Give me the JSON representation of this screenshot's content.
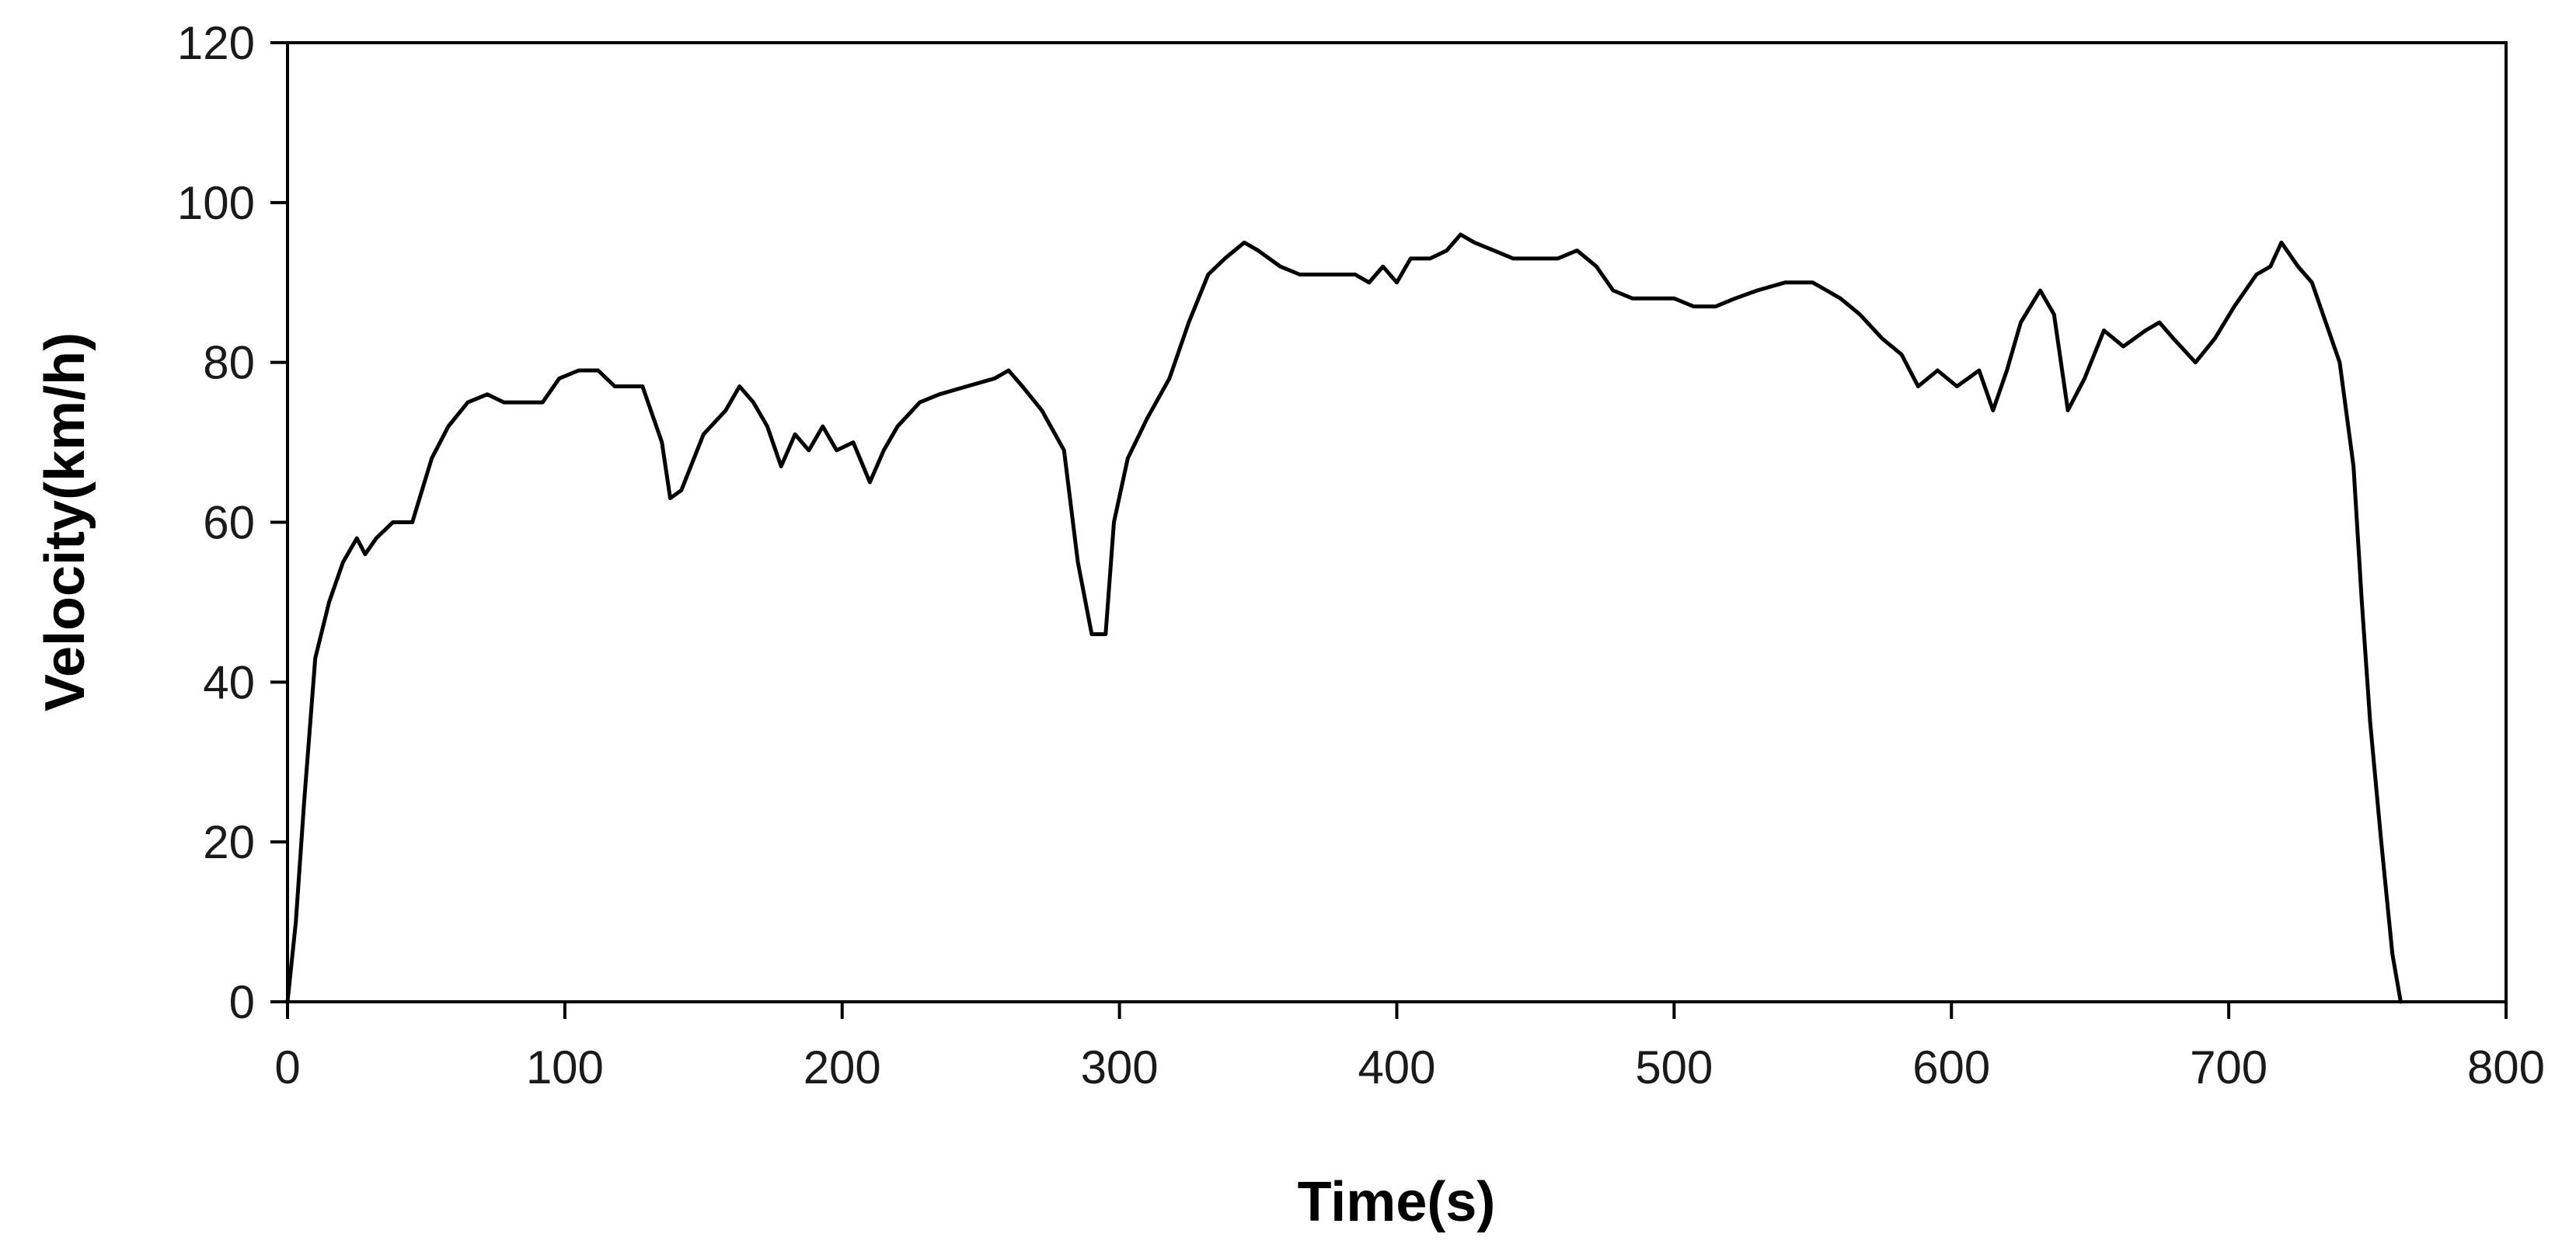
{
  "chart_data": {
    "type": "line",
    "title": "",
    "xlabel": "Time(s)",
    "ylabel": "Velocity(km/h)",
    "xlim": [
      0,
      800
    ],
    "ylim": [
      0,
      120
    ],
    "x_ticks": [
      0,
      100,
      200,
      300,
      400,
      500,
      600,
      700,
      800
    ],
    "y_ticks": [
      0,
      20,
      40,
      60,
      80,
      100,
      120
    ],
    "grid": false,
    "legend": "none",
    "line_color": "#000000",
    "series": [
      {
        "x": [
          0,
          3,
          6,
          10,
          15,
          20,
          25,
          28,
          32,
          38,
          45,
          52,
          58,
          65,
          72,
          78,
          85,
          92,
          98,
          105,
          112,
          118,
          122,
          128,
          135,
          138,
          142,
          150,
          158,
          163,
          168,
          173,
          178,
          183,
          188,
          193,
          198,
          204,
          210,
          215,
          220,
          228,
          235,
          245,
          255,
          260,
          265,
          272,
          280,
          285,
          290,
          295,
          298,
          303,
          310,
          318,
          325,
          332,
          338,
          345,
          350,
          358,
          365,
          372,
          378,
          385,
          390,
          395,
          400,
          405,
          412,
          418,
          423,
          428,
          435,
          442,
          450,
          458,
          465,
          472,
          478,
          485,
          492,
          500,
          507,
          515,
          522,
          530,
          540,
          550,
          555,
          560,
          567,
          575,
          582,
          588,
          595,
          602,
          610,
          615,
          620,
          625,
          632,
          637,
          642,
          648,
          655,
          662,
          670,
          675,
          680,
          688,
          695,
          702,
          710,
          715,
          719,
          725,
          730,
          735,
          740,
          745,
          748,
          751,
          755,
          759,
          762
        ],
        "y": [
          0,
          10,
          25,
          43,
          50,
          55,
          58,
          56,
          58,
          60,
          60,
          68,
          72,
          75,
          76,
          75,
          75,
          75,
          78,
          79,
          79,
          77,
          77,
          77,
          70,
          63,
          64,
          71,
          74,
          77,
          75,
          72,
          67,
          71,
          69,
          72,
          69,
          70,
          65,
          69,
          72,
          75,
          76,
          77,
          78,
          79,
          77,
          74,
          69,
          55,
          46,
          46,
          60,
          68,
          73,
          78,
          85,
          91,
          93,
          95,
          94,
          92,
          91,
          91,
          91,
          91,
          90,
          92,
          90,
          93,
          93,
          94,
          96,
          95,
          94,
          93,
          93,
          93,
          94,
          92,
          89,
          88,
          88,
          88,
          87,
          87,
          88,
          89,
          90,
          90,
          89,
          88,
          86,
          83,
          81,
          77,
          79,
          77,
          79,
          74,
          79,
          85,
          89,
          86,
          74,
          78,
          84,
          82,
          84,
          85,
          83,
          80,
          83,
          87,
          91,
          92,
          95,
          92,
          90,
          85,
          80,
          67,
          50,
          35,
          20,
          6,
          0
        ]
      }
    ]
  }
}
